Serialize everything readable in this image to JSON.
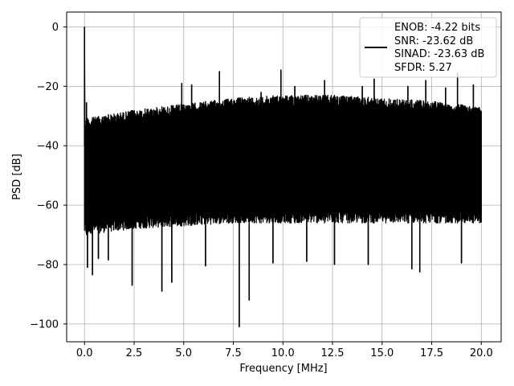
{
  "chart_data": {
    "type": "line",
    "title": "",
    "xlabel": "Frequency [MHz]",
    "ylabel": "PSD [dB]",
    "xlim": [
      -0.9,
      21.0
    ],
    "ylim": [
      -106,
      5
    ],
    "x_ticks": [
      0.0,
      2.5,
      5.0,
      7.5,
      10.0,
      12.5,
      15.0,
      17.5,
      20.0
    ],
    "x_tick_labels": [
      "0.0",
      "2.5",
      "5.0",
      "7.5",
      "10.0",
      "12.5",
      "15.0",
      "17.5",
      "20.0"
    ],
    "y_ticks": [
      0,
      -20,
      -40,
      -60,
      -80,
      -100
    ],
    "y_tick_labels": [
      "0",
      "−20",
      "−40",
      "−60",
      "−80",
      "−100"
    ],
    "grid": true,
    "legend_position": "top-right",
    "legend_lines": [
      "ENOB: -4.22 bits",
      "SNR: -23.62 dB",
      "SINAD: -23.63 dB",
      "SFDR: 5.27"
    ],
    "series": [
      {
        "color": "#000000",
        "x_range": [
          0.0,
          20.0
        ],
        "peak": {
          "x": 0.0,
          "y": 0.0
        },
        "upper_envelope": [
          [
            0.0,
            -31
          ],
          [
            2.5,
            -28
          ],
          [
            5.0,
            -26
          ],
          [
            7.5,
            -24
          ],
          [
            10.0,
            -23
          ],
          [
            12.5,
            -23
          ],
          [
            15.0,
            -24
          ],
          [
            17.5,
            -25
          ],
          [
            20.0,
            -27
          ]
        ],
        "lower_envelope": [
          [
            0.0,
            -70
          ],
          [
            2.5,
            -68
          ],
          [
            5.0,
            -67
          ],
          [
            7.5,
            -66
          ],
          [
            10.0,
            -66
          ],
          [
            12.5,
            -66
          ],
          [
            15.0,
            -66
          ],
          [
            17.5,
            -66
          ],
          [
            20.0,
            -66
          ]
        ],
        "spurs": [
          [
            0.1,
            -25.5
          ],
          [
            4.9,
            -19.0
          ],
          [
            5.4,
            -19.5
          ],
          [
            6.8,
            -15.0
          ],
          [
            8.9,
            -22.0
          ],
          [
            9.9,
            -14.5
          ],
          [
            10.6,
            -20.0
          ],
          [
            12.1,
            -18.0
          ],
          [
            14.0,
            -20.0
          ],
          [
            14.6,
            -17.5
          ],
          [
            16.3,
            -20.0
          ],
          [
            17.2,
            -18.0
          ],
          [
            18.2,
            -20.5
          ],
          [
            18.8,
            -15.5
          ],
          [
            19.6,
            -19.5
          ]
        ],
        "dips": [
          [
            0.15,
            -81.0
          ],
          [
            0.4,
            -83.5
          ],
          [
            0.7,
            -78.0
          ],
          [
            1.2,
            -78.5
          ],
          [
            2.4,
            -87.0
          ],
          [
            3.9,
            -89.0
          ],
          [
            4.4,
            -86.0
          ],
          [
            6.1,
            -80.5
          ],
          [
            7.8,
            -101.0
          ],
          [
            8.3,
            -92.0
          ],
          [
            9.5,
            -79.5
          ],
          [
            11.2,
            -79.0
          ],
          [
            12.6,
            -80.0
          ],
          [
            14.3,
            -80.0
          ],
          [
            16.5,
            -81.5
          ],
          [
            16.9,
            -82.5
          ],
          [
            19.0,
            -79.5
          ]
        ]
      }
    ]
  }
}
